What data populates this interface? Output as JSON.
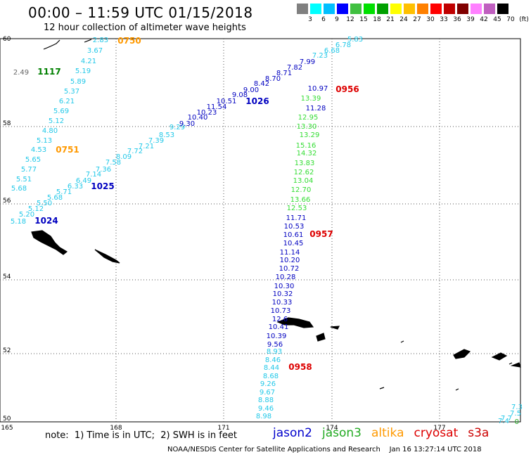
{
  "header": {
    "title": "00:00 – 11:59 UTC 01/15/2018",
    "subtitle": "12 hour collection of altimeter wave heights"
  },
  "colorbar": {
    "colors": [
      "#808080",
      "#00ffff",
      "#00bfff",
      "#0000ff",
      "#40c040",
      "#00e000",
      "#00a000",
      "#ffff00",
      "#ffc000",
      "#ff8000",
      "#ff0000",
      "#c00000",
      "#800000",
      "#ff80ff",
      "#c060c0",
      "#000000"
    ],
    "labels": [
      "3",
      "6",
      "9",
      "12",
      "15",
      "18",
      "21",
      "24",
      "27",
      "30",
      "33",
      "36",
      "39",
      "42",
      "45",
      "70",
      "(ft)"
    ]
  },
  "axes": {
    "x_ticks": [
      "165",
      "168",
      "171",
      "174",
      "177"
    ],
    "y_ticks": [
      "60",
      "58",
      "56",
      "54",
      "52",
      "50"
    ]
  },
  "passes": {
    "jason2_cyan_west": [
      "2.83",
      "3.67",
      "4.21",
      "5.19",
      "5.89",
      "5.37",
      "6.21",
      "5.69",
      "5.12",
      "4.80",
      "5.13",
      "4.53",
      "5.65",
      "5.77",
      "5.51",
      "5.68"
    ],
    "jason2_cyan_low": [
      "5.18",
      "5.20",
      "5.12",
      "5.50",
      "5.68",
      "5.71",
      "6.33",
      "6.49",
      "7.14",
      "7.36",
      "7.58",
      "8.09",
      "7.72",
      "7.21",
      "7.39",
      "8.53",
      "9.29"
    ],
    "jason2_dark_diag": [
      "9.30",
      "10.40",
      "10.23",
      "11.54",
      "10.51",
      "9.08",
      "9.00",
      "8.42",
      "8.70",
      "8.71",
      "7.82",
      "7.99"
    ],
    "jason2_cyan_diag": [
      "7.23",
      "6.68",
      "6.78",
      "5.83"
    ],
    "jason3_green": [
      "13.39",
      "12.95",
      "13.30",
      "13.29",
      "15.16",
      "14.32",
      "13.83",
      "12.62",
      "13.04",
      "12.70",
      "13.66",
      "12.53"
    ],
    "jason2_dark_south": [
      "10.97",
      "11.28",
      "11.71",
      "10.53",
      "10.61",
      "10.45",
      "11.14",
      "10.20",
      "10.72",
      "10.28",
      "10.30",
      "10.32",
      "10.33",
      "10.73",
      "12.6",
      "10.41",
      "10.39",
      "9.56"
    ],
    "jason2_cyan_south": [
      "8.93",
      "8.46",
      "8.44",
      "8.68",
      "9.26",
      "9.67",
      "8.88",
      "9.46",
      "8.98"
    ],
    "corner_values": [
      "7.3",
      "7.5",
      "7.7",
      "7.4"
    ],
    "corner_flag": "0",
    "gray_value": "2.49",
    "times": [
      {
        "label": "0750",
        "color": "#ff9900"
      },
      {
        "label": "1117",
        "color": "#008000"
      },
      {
        "label": "1026",
        "color": "#0000c0"
      },
      {
        "label": "0956",
        "color": "#dd0000"
      },
      {
        "label": "0751",
        "color": "#ff9900"
      },
      {
        "label": "1025",
        "color": "#0000c0"
      },
      {
        "label": "1024",
        "color": "#0000c0"
      },
      {
        "label": "0957",
        "color": "#dd0000"
      },
      {
        "label": "0958",
        "color": "#dd0000"
      }
    ]
  },
  "footer": {
    "note": "note:  1) Time is in UTC;  2) SWH is in feet",
    "legend": [
      {
        "name": "jason2",
        "color": "#0000cc"
      },
      {
        "name": "jason3",
        "color": "#22aa22"
      },
      {
        "name": "altika",
        "color": "#ff9900"
      },
      {
        "name": "cryosat",
        "color": "#dd0000"
      },
      {
        "name": "s3a",
        "color": "#cc0000"
      }
    ],
    "credit": "NOAA/NESDIS Center for Satellite Applications and Research    Jan 16 13:27:14 UTC 2018"
  }
}
